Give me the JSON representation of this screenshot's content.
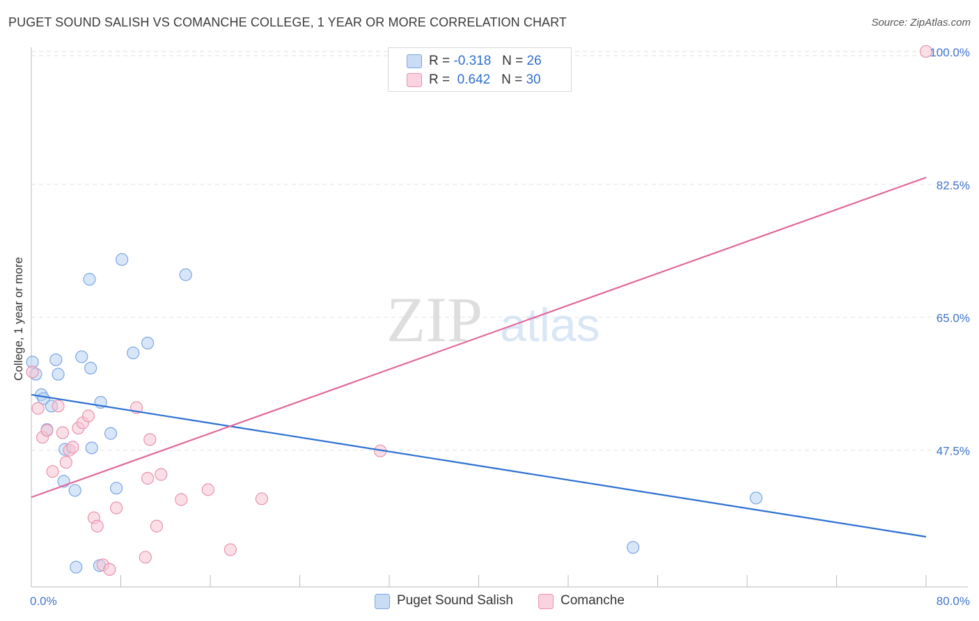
{
  "title": "PUGET SOUND SALISH VS COMANCHE COLLEGE, 1 YEAR OR MORE CORRELATION CHART",
  "source": "Source: ZipAtlas.com",
  "watermark": {
    "zip": "ZIP",
    "atlas": "atlas"
  },
  "legend": {
    "r_label": "R =",
    "n_label": "N =",
    "rows": [
      {
        "r": "-0.318",
        "n": "26"
      },
      {
        "r": "0.642",
        "n": "30"
      }
    ]
  },
  "colors": {
    "blue_fill": "#b8d2f4",
    "blue_stroke": "#7aa7e2",
    "blue_line": "#2b6fd1",
    "pink_fill": "#f8c4d4",
    "pink_stroke": "#e992ae",
    "pink_line": "#e0689a",
    "tick_text": "#3f74cc",
    "grid": "#e2e2e2"
  },
  "chart_data": {
    "type": "scatter",
    "title": "PUGET SOUND SALISH VS COMANCHE COLLEGE, 1 YEAR OR MORE CORRELATION CHART",
    "xlabel": "",
    "ylabel": "College, 1 year or more",
    "xlim": [
      0,
      80
    ],
    "ylim": [
      29.5,
      102
    ],
    "x_tick_labels": [
      "0.0%",
      "80.0%"
    ],
    "y_ticks": [
      47.5,
      65.0,
      82.5,
      100.0
    ],
    "y_tick_labels": [
      "47.5%",
      "65.0%",
      "82.5%",
      "100.0%"
    ],
    "grid": true,
    "legend_position": "top-center",
    "series": [
      {
        "name": "Puget Sound Salish",
        "color": "#7aa7e2",
        "r": -0.318,
        "n": 26,
        "points": [
          [
            0.1,
            59.1
          ],
          [
            0.4,
            57.5
          ],
          [
            0.9,
            54.8
          ],
          [
            1.1,
            54.3
          ],
          [
            1.4,
            50.2
          ],
          [
            1.8,
            53.3
          ],
          [
            2.2,
            59.4
          ],
          [
            2.4,
            57.5
          ],
          [
            2.9,
            43.4
          ],
          [
            3.0,
            47.6
          ],
          [
            3.9,
            42.2
          ],
          [
            4.5,
            59.8
          ],
          [
            5.2,
            70.0
          ],
          [
            5.3,
            58.3
          ],
          [
            5.4,
            47.8
          ],
          [
            6.2,
            53.8
          ],
          [
            7.1,
            49.7
          ],
          [
            7.6,
            42.5
          ],
          [
            8.1,
            72.6
          ],
          [
            9.1,
            60.3
          ],
          [
            10.4,
            61.6
          ],
          [
            13.8,
            70.6
          ],
          [
            6.1,
            32.3
          ],
          [
            4.0,
            32.1
          ],
          [
            64.8,
            41.2
          ],
          [
            53.8,
            34.7
          ]
        ],
        "trend": [
          [
            0,
            54.8
          ],
          [
            80,
            36.1
          ]
        ]
      },
      {
        "name": "Comanche",
        "color": "#e992ae",
        "r": 0.642,
        "n": 30,
        "points": [
          [
            0.1,
            57.8
          ],
          [
            0.6,
            53.0
          ],
          [
            1.0,
            49.2
          ],
          [
            1.4,
            50.1
          ],
          [
            1.9,
            44.7
          ],
          [
            2.4,
            53.3
          ],
          [
            2.8,
            49.8
          ],
          [
            3.1,
            45.9
          ],
          [
            3.4,
            47.5
          ],
          [
            3.7,
            47.9
          ],
          [
            4.2,
            50.4
          ],
          [
            4.6,
            51.1
          ],
          [
            5.1,
            52.0
          ],
          [
            5.6,
            38.6
          ],
          [
            5.9,
            37.5
          ],
          [
            6.4,
            32.4
          ],
          [
            7.0,
            31.8
          ],
          [
            7.6,
            39.9
          ],
          [
            9.4,
            53.1
          ],
          [
            10.2,
            33.4
          ],
          [
            10.4,
            43.8
          ],
          [
            10.6,
            48.9
          ],
          [
            11.2,
            37.5
          ],
          [
            11.6,
            44.3
          ],
          [
            13.4,
            41.0
          ],
          [
            15.8,
            42.3
          ],
          [
            17.8,
            34.4
          ],
          [
            20.6,
            41.1
          ],
          [
            31.2,
            47.4
          ],
          [
            80.0,
            100.0
          ]
        ],
        "trend": [
          [
            0,
            41.3
          ],
          [
            80,
            83.4
          ]
        ]
      }
    ]
  },
  "bottom_legend": [
    "Puget Sound Salish",
    "Comanche"
  ]
}
